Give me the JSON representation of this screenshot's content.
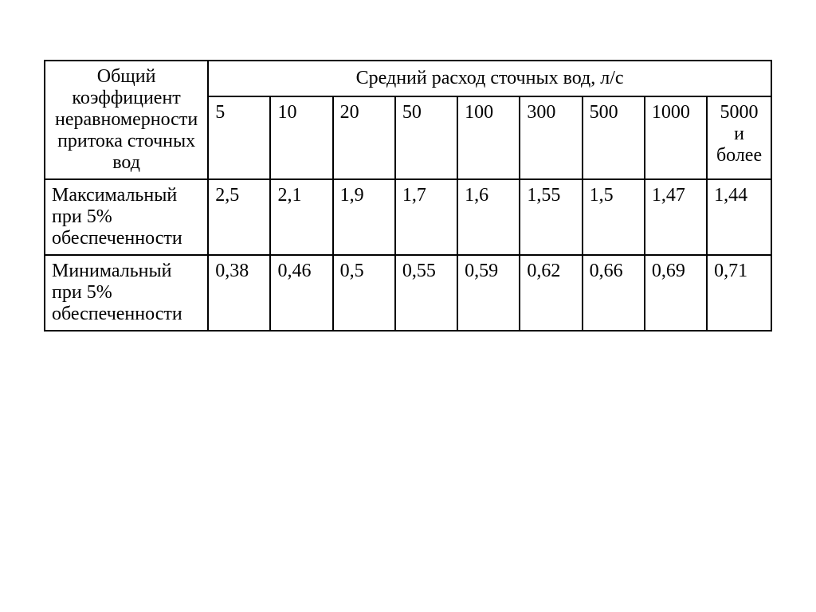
{
  "table": {
    "row_header_label": "Общий коэффициент неравномерности притока сточных вод",
    "col_header_label": "Средний расход сточных вод, л/с",
    "flow_rates": [
      "5",
      "10",
      "20",
      "50",
      "100",
      "300",
      "500",
      "1000",
      "5000 и более"
    ],
    "rows": [
      {
        "label": "Максимальный при 5% обеспеченности",
        "values": [
          "2,5",
          "2,1",
          "1,9",
          "1,7",
          "1,6",
          "1,55",
          "1,5",
          "1,47",
          "1,44"
        ]
      },
      {
        "label": "Минимальный при 5% обеспеченности",
        "values": [
          "0,38",
          "0,46",
          "0,5",
          "0,55",
          "0,59",
          "0,62",
          "0,66",
          "0,69",
          "0,71"
        ]
      }
    ],
    "border_color": "#000000",
    "background_color": "#ffffff",
    "text_color": "#000000",
    "font_size": 24,
    "font_family": "Times New Roman"
  }
}
